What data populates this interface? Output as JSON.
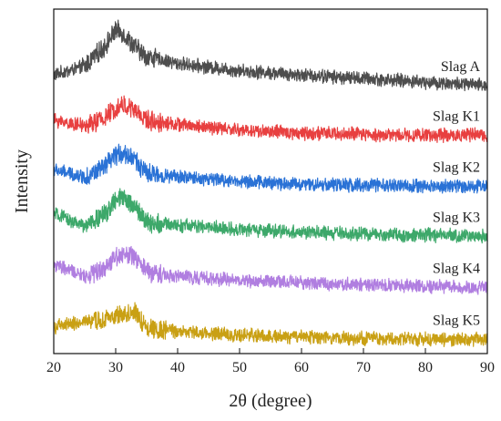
{
  "chart_data": {
    "type": "line",
    "xlabel": "2θ (degree)",
    "ylabel": "Intensity",
    "xlim": [
      20,
      90
    ],
    "x_ticks": [
      "20",
      "30",
      "40",
      "50",
      "60",
      "70",
      "80",
      "90"
    ],
    "y_ticks": "none",
    "grid": false,
    "legend": "labels at right end of each curve",
    "series": [
      {
        "name": "Slag A",
        "color": "#4d4d4d",
        "offset": 5,
        "peak_center": 30.5,
        "peak_height": 0.72,
        "x": [
          20,
          25,
          28,
          30,
          31,
          33,
          35,
          40,
          50,
          60,
          70,
          80,
          90
        ],
        "y": [
          0.1,
          0.22,
          0.48,
          0.72,
          0.7,
          0.5,
          0.36,
          0.26,
          0.16,
          0.1,
          0.05,
          0.0,
          -0.05
        ]
      },
      {
        "name": "Slag K1",
        "color": "#e84040",
        "offset": 4,
        "peak_center": 31.5,
        "peak_height": 0.4,
        "x": [
          20,
          25,
          28,
          30,
          31,
          33,
          35,
          40,
          50,
          60,
          70,
          80,
          90
        ],
        "y": [
          0.18,
          0.1,
          0.2,
          0.35,
          0.4,
          0.32,
          0.18,
          0.12,
          0.04,
          0.0,
          -0.02,
          -0.03,
          -0.03
        ]
      },
      {
        "name": "Slag K2",
        "color": "#2a72d6",
        "offset": 3,
        "peak_center": 31.0,
        "peak_height": 0.44,
        "x": [
          20,
          25,
          28,
          30,
          31,
          33,
          35,
          40,
          50,
          60,
          70,
          80,
          90
        ],
        "y": [
          0.2,
          0.1,
          0.22,
          0.4,
          0.44,
          0.36,
          0.14,
          0.1,
          0.04,
          0.0,
          -0.02,
          -0.03,
          -0.03
        ]
      },
      {
        "name": "Slag K3",
        "color": "#3da86a",
        "offset": 2,
        "peak_center": 31.5,
        "peak_height": 0.52,
        "x": [
          20,
          25,
          28,
          30,
          31,
          33,
          35,
          40,
          50,
          60,
          70,
          80,
          90
        ],
        "y": [
          0.3,
          0.12,
          0.28,
          0.48,
          0.52,
          0.42,
          0.18,
          0.14,
          0.08,
          0.04,
          0.01,
          0.0,
          -0.02
        ]
      },
      {
        "name": "Slag K4",
        "color": "#b07ee0",
        "offset": 1,
        "peak_center": 31.5,
        "peak_height": 0.46,
        "x": [
          20,
          25,
          28,
          30,
          31,
          33,
          35,
          40,
          50,
          60,
          70,
          80,
          90
        ],
        "y": [
          0.3,
          0.14,
          0.24,
          0.42,
          0.46,
          0.4,
          0.2,
          0.14,
          0.08,
          0.05,
          0.02,
          0.0,
          -0.02
        ]
      },
      {
        "name": "Slag K5",
        "color": "#c9a014",
        "offset": 0,
        "peak_center": 32.5,
        "peak_height": 0.34,
        "x": [
          20,
          25,
          28,
          30,
          31,
          33,
          35,
          40,
          50,
          60,
          70,
          80,
          90
        ],
        "y": [
          0.14,
          0.22,
          0.22,
          0.3,
          0.32,
          0.34,
          0.14,
          0.08,
          0.03,
          0.0,
          -0.02,
          -0.03,
          -0.03
        ]
      }
    ]
  }
}
